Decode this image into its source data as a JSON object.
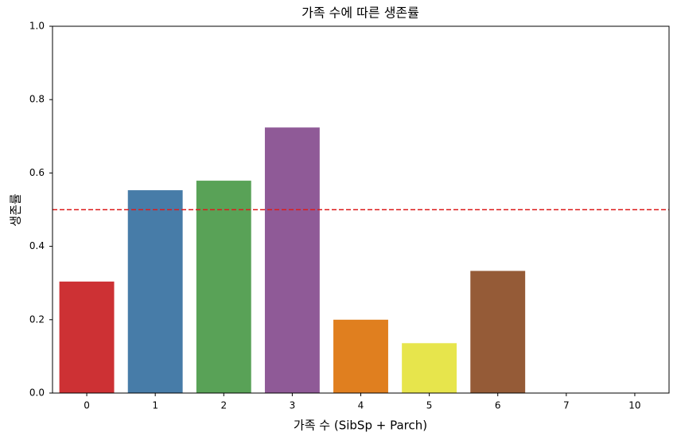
{
  "chart_data": {
    "type": "bar",
    "title": "가족 수에 따른 생존률",
    "x_label": "가족 수 (SibSp + Parch)",
    "y_label": "생존률",
    "categories": [
      "0",
      "1",
      "2",
      "3",
      "4",
      "5",
      "6",
      "7",
      "10"
    ],
    "values": [
      0.304,
      0.553,
      0.579,
      0.724,
      0.2,
      0.136,
      0.333,
      0,
      0
    ],
    "colors": [
      "#cd3134",
      "#477ca8",
      "#59a257",
      "#8f5a97",
      "#e07f1f",
      "#e7e54c",
      "#955b37",
      "#e98fc0",
      "#999999"
    ],
    "ylim": [
      0,
      1
    ],
    "yticks": [
      {
        "value": 0,
        "label": "0.0"
      },
      0.2,
      0.4,
      0.6,
      0.8,
      {
        "value": 1,
        "label": "1.0"
      }
    ],
    "reference_line": {
      "value": 0.5,
      "color": "#dd1c1c",
      "dashed": true
    },
    "grid": false
  }
}
